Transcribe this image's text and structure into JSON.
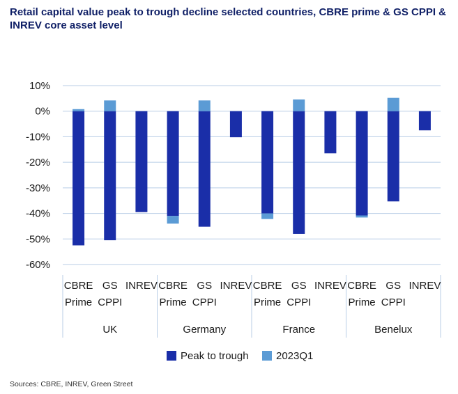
{
  "title": "Retail capital value peak to trough decline selected countries, CBRE prime & GS CPPI & INREV core asset level",
  "source": "Sources: CBRE, INREV, Green Street",
  "colors": {
    "peak_to_trough": "#1a2ea8",
    "q1_2023": "#5b9bd5",
    "grid": "#b8cde6",
    "text": "#1a1a1a"
  },
  "chart_data": {
    "type": "bar",
    "stacked": true,
    "title": "Retail capital value peak to trough decline selected countries, CBRE prime & GS CPPI & INREV core asset level",
    "ylim": [
      -60,
      10
    ],
    "yticks": [
      {
        "value": 10,
        "label": "10%"
      },
      {
        "value": 0,
        "label": "0%"
      },
      {
        "value": -10,
        "label": "-10%"
      },
      {
        "value": -20,
        "label": "-20%"
      },
      {
        "value": -30,
        "label": "-30%"
      },
      {
        "value": -40,
        "label": "-40%"
      },
      {
        "value": -50,
        "label": "-50%"
      },
      {
        "value": -60,
        "label": "-60%"
      }
    ],
    "grid": true,
    "legend_position": "bottom",
    "groups": [
      {
        "name": "UK",
        "categories": [
          {
            "label": [
              "CBRE",
              "Prime"
            ],
            "peak": -52.5,
            "q1": 0.8
          },
          {
            "label": [
              "GS",
              "CPPI"
            ],
            "peak": -50.5,
            "q1": 4.2
          },
          {
            "label": [
              "INREV"
            ],
            "peak": -39.5,
            "q1": 0
          }
        ]
      },
      {
        "name": "Germany",
        "categories": [
          {
            "label": [
              "CBRE",
              "Prime"
            ],
            "peak": -41,
            "q1": -3
          },
          {
            "label": [
              "GS",
              "CPPI"
            ],
            "peak": -45.2,
            "q1": 4.2
          },
          {
            "label": [
              "INREV"
            ],
            "peak": -10.2,
            "q1": 0
          }
        ]
      },
      {
        "name": "France",
        "categories": [
          {
            "label": [
              "CBRE",
              "Prime"
            ],
            "peak": -40,
            "q1": -2.2
          },
          {
            "label": [
              "GS",
              "CPPI"
            ],
            "peak": -48,
            "q1": 4.6
          },
          {
            "label": [
              "INREV"
            ],
            "peak": -16.5,
            "q1": 0
          }
        ]
      },
      {
        "name": "Benelux",
        "categories": [
          {
            "label": [
              "CBRE",
              "Prime"
            ],
            "peak": -40.8,
            "q1": -0.8
          },
          {
            "label": [
              "GS",
              "CPPI"
            ],
            "peak": -35.3,
            "q1": 5.2
          },
          {
            "label": [
              "INREV"
            ],
            "peak": -7.5,
            "q1": 0
          }
        ]
      }
    ],
    "series": [
      {
        "name": "Peak to trough",
        "color": "#1a2ea8"
      },
      {
        "name": "2023Q1",
        "color": "#5b9bd5"
      }
    ]
  }
}
